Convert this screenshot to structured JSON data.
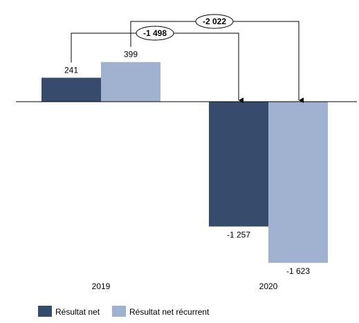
{
  "chart_data": {
    "type": "bar",
    "categories": [
      "2019",
      "2020"
    ],
    "series": [
      {
        "name": "Résultat net",
        "color": "#374c6c",
        "values": [
          241,
          -1257
        ],
        "labels": [
          "241",
          "-1 257"
        ]
      },
      {
        "name": "Résultat net récurrent",
        "color": "#a0b2cf",
        "values": [
          399,
          -1623
        ],
        "labels": [
          "399",
          "-1 623"
        ]
      }
    ],
    "annotations": [
      {
        "label": "-1 498",
        "series": 0,
        "from": "2019",
        "to": "2020"
      },
      {
        "label": "-2 022",
        "series": 1,
        "from": "2019",
        "to": "2020"
      }
    ],
    "ylim": [
      -1623,
      399
    ],
    "grid": false,
    "legend_position": "bottom-left"
  }
}
